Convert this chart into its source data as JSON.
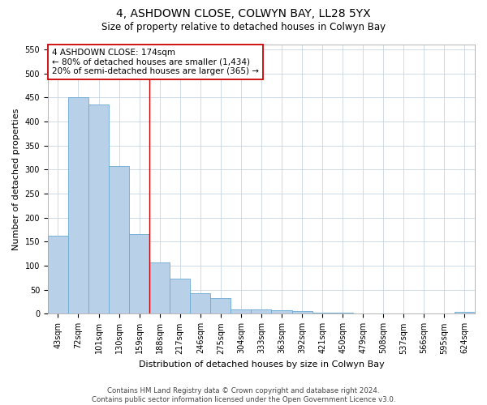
{
  "title": "4, ASHDOWN CLOSE, COLWYN BAY, LL28 5YX",
  "subtitle": "Size of property relative to detached houses in Colwyn Bay",
  "xlabel": "Distribution of detached houses by size in Colwyn Bay",
  "ylabel": "Number of detached properties",
  "categories": [
    "43sqm",
    "72sqm",
    "101sqm",
    "130sqm",
    "159sqm",
    "188sqm",
    "217sqm",
    "246sqm",
    "275sqm",
    "304sqm",
    "333sqm",
    "363sqm",
    "392sqm",
    "421sqm",
    "450sqm",
    "479sqm",
    "508sqm",
    "537sqm",
    "566sqm",
    "595sqm",
    "624sqm"
  ],
  "values": [
    163,
    450,
    435,
    307,
    165,
    107,
    73,
    43,
    33,
    10,
    10,
    8,
    5,
    3,
    2,
    1,
    1,
    1,
    1,
    1,
    4
  ],
  "bar_color": "#b8d0e8",
  "bar_edge_color": "#6aaad4",
  "ylim": [
    0,
    560
  ],
  "yticks": [
    0,
    50,
    100,
    150,
    200,
    250,
    300,
    350,
    400,
    450,
    500,
    550
  ],
  "red_line_bin_index": 4,
  "annotation_text": "4 ASHDOWN CLOSE: 174sqm\n← 80% of detached houses are smaller (1,434)\n20% of semi-detached houses are larger (365) →",
  "annotation_box_color": "#ffffff",
  "annotation_box_edge_color": "#cc0000",
  "footer_line1": "Contains HM Land Registry data © Crown copyright and database right 2024.",
  "footer_line2": "Contains public sector information licensed under the Open Government Licence v3.0.",
  "background_color": "#ffffff",
  "grid_color": "#c8d4e4",
  "title_fontsize": 10,
  "subtitle_fontsize": 8.5,
  "xlabel_fontsize": 8,
  "ylabel_fontsize": 8,
  "tick_fontsize": 7,
  "annot_fontsize": 7.5
}
